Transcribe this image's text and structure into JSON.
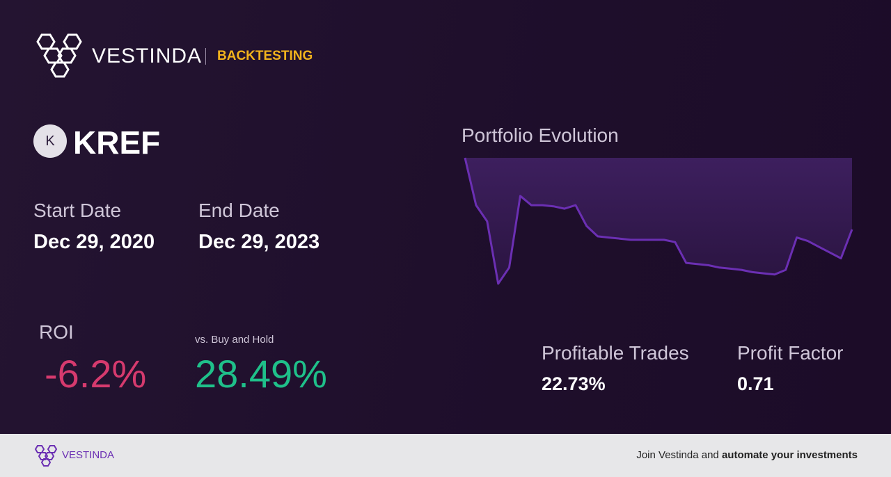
{
  "header": {
    "brand": "VESTINDA",
    "section": "BACKTESTING"
  },
  "ticker": {
    "icon": "K",
    "symbol": "KREF"
  },
  "dates": {
    "start_label": "Start Date",
    "start": "Dec 29, 2020",
    "end_label": "End Date",
    "end": "Dec 29, 2023"
  },
  "roi": {
    "label": "ROI",
    "value": "-6.2%",
    "compare_label": "vs. Buy and Hold",
    "compare_value": "28.49%"
  },
  "stats": {
    "trades_label": "Profitable Trades",
    "trades": "22.73%",
    "factor_label": "Profit Factor",
    "factor": "0.71"
  },
  "chart_data": {
    "type": "line",
    "title": "Portfolio Evolution",
    "color": "#6b2fb3",
    "values": [
      100,
      95.9,
      94.5,
      89.1,
      90.5,
      96.7,
      95.9,
      95.9,
      95.8,
      95.6,
      95.9,
      94.1,
      93.2,
      93.1,
      93.0,
      92.9,
      92.9,
      92.9,
      92.9,
      92.7,
      90.9,
      90.8,
      90.7,
      90.5,
      90.4,
      90.3,
      90.1,
      90.0,
      89.9,
      90.3,
      93.1,
      92.8,
      92.3,
      91.8,
      91.3,
      93.8
    ]
  },
  "footer": {
    "brand": "VESTINDA",
    "cta_start": "Join Vestinda and",
    "cta_bold": "automate your investments"
  }
}
